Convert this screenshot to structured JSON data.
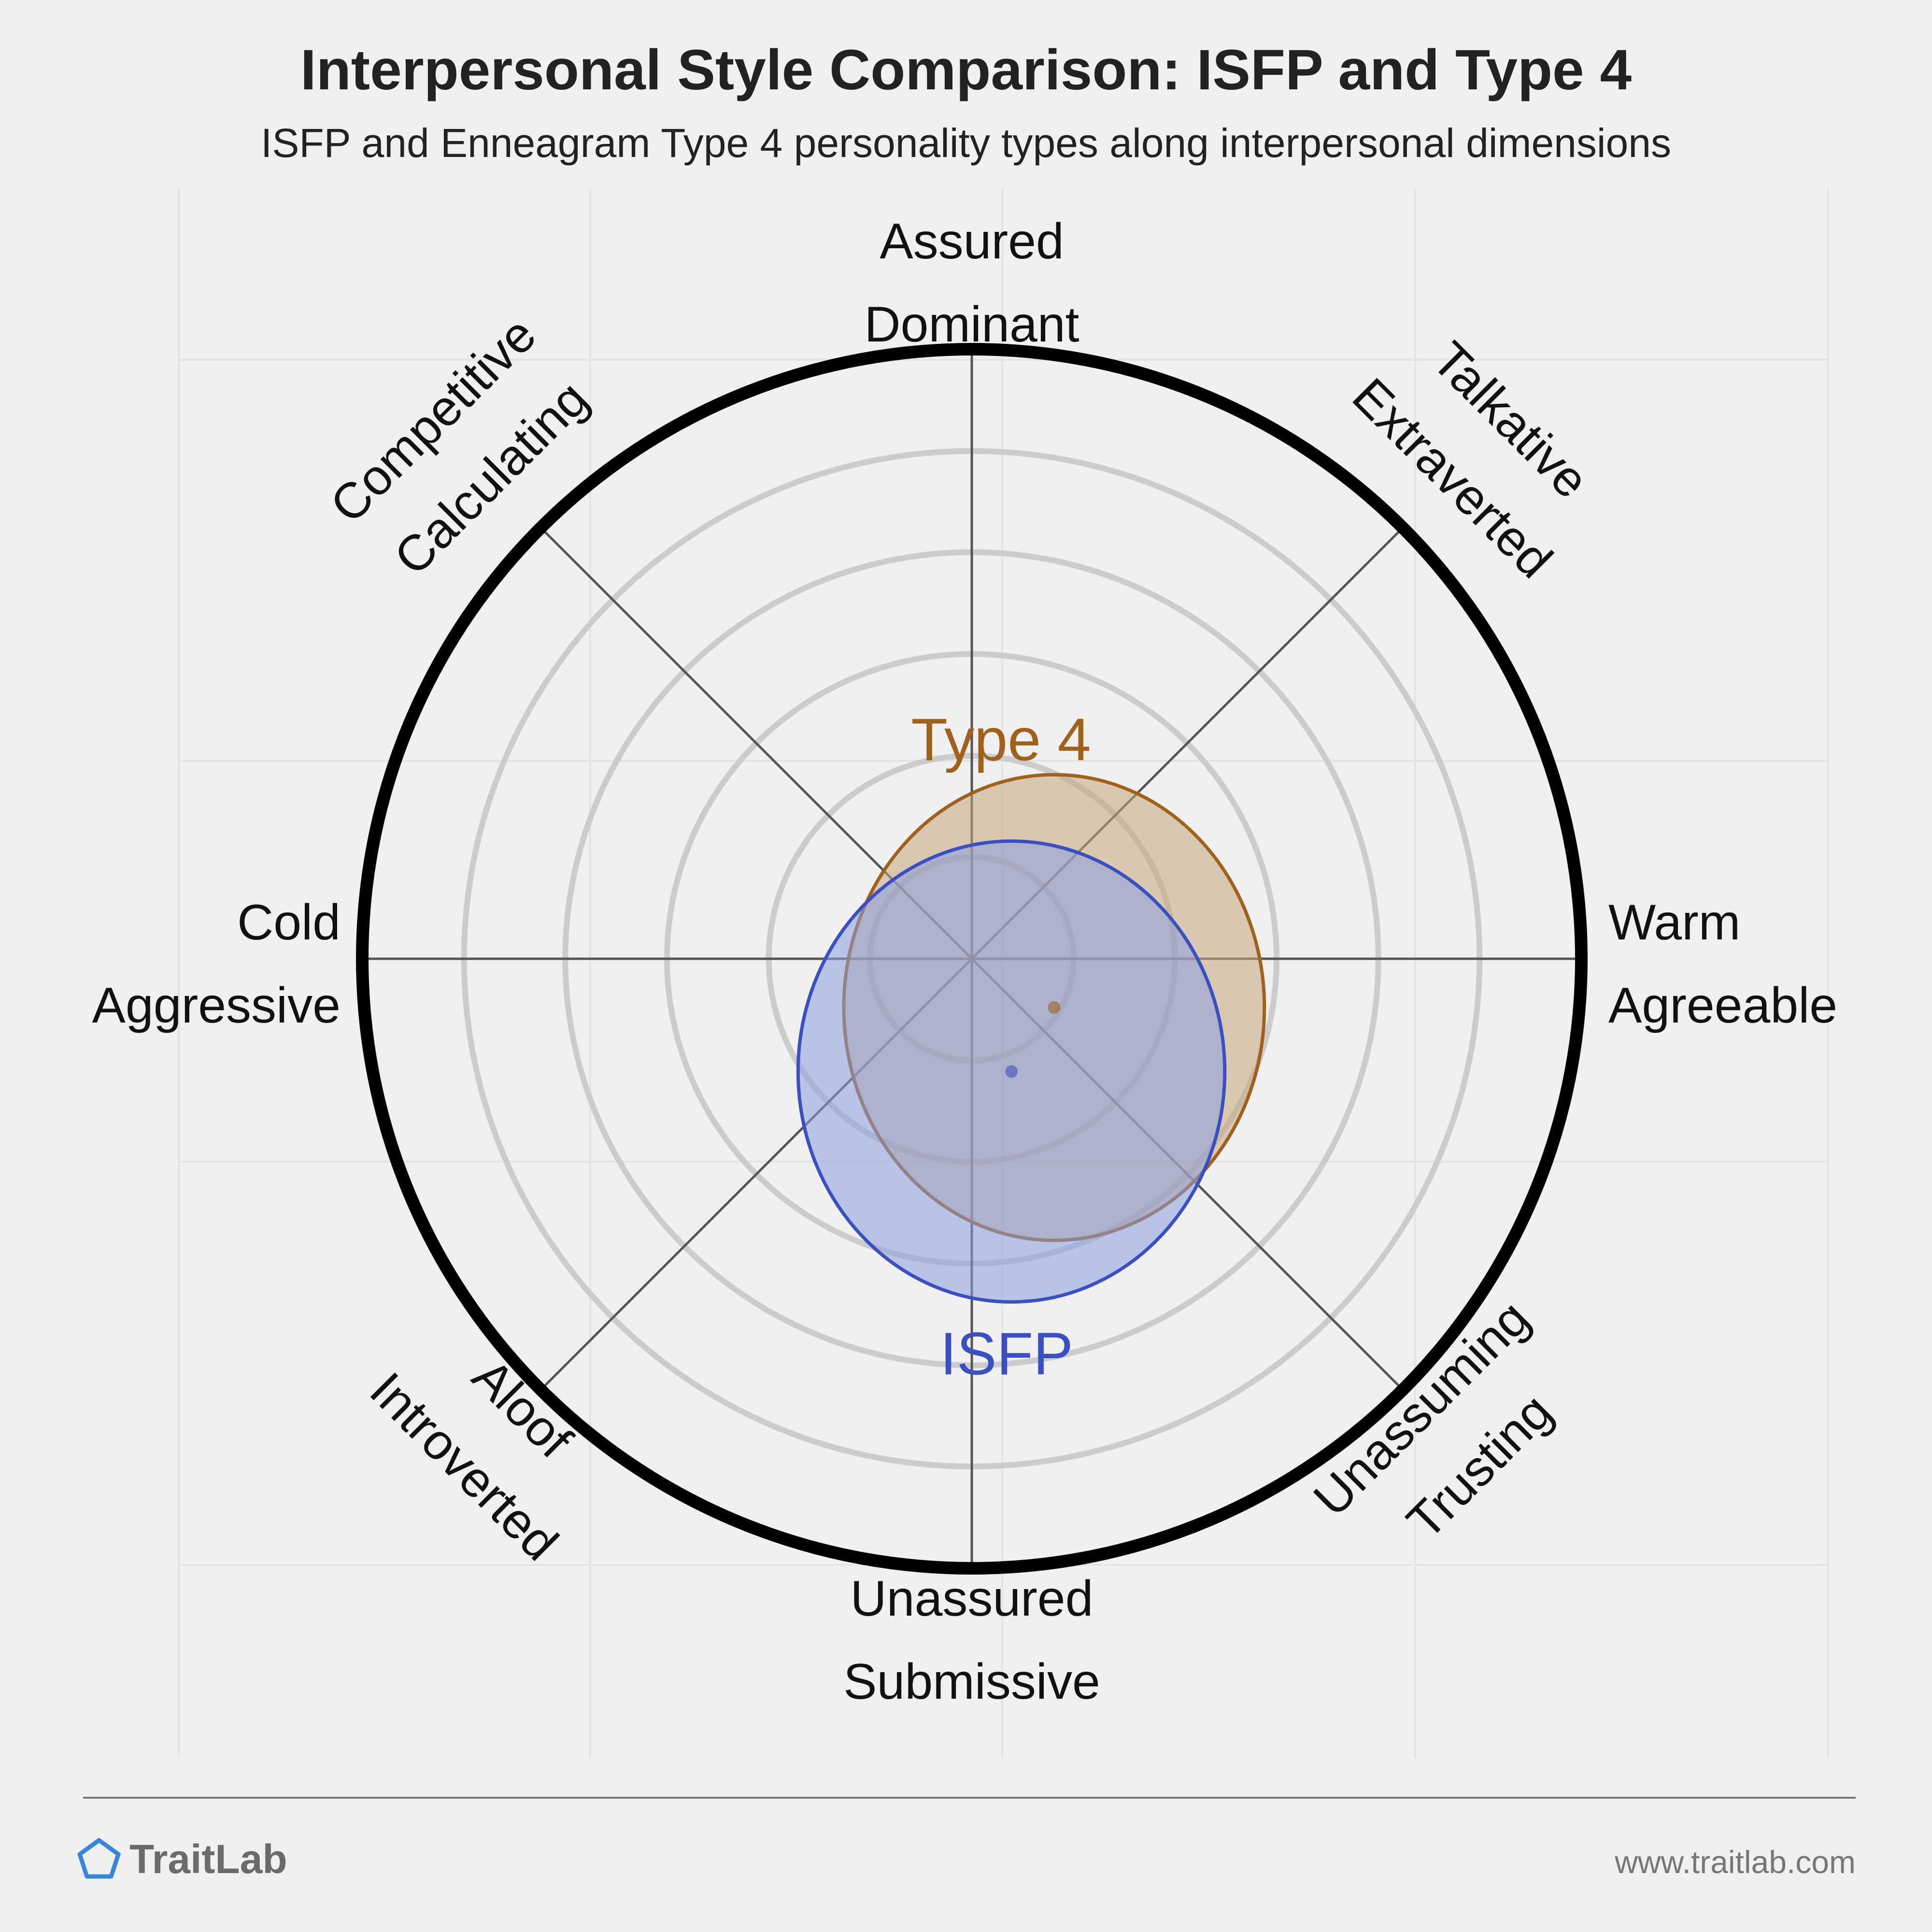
{
  "header": {
    "title": "Interpersonal Style Comparison: ISFP and Type 4",
    "subtitle": "ISFP and Enneagram Type 4 personality types along interpersonal dimensions"
  },
  "footer": {
    "brand": "TraitLab",
    "url": "www.traitlab.com",
    "brand_icon": "pentagon-icon",
    "brand_color": "#3a86d6"
  },
  "chart_data": {
    "type": "scatter",
    "chart_kind": "interpersonal-circumplex",
    "grid": true,
    "scale": {
      "max_radius": 1.0,
      "rings": [
        0.167,
        0.333,
        0.5,
        0.667,
        0.833
      ]
    },
    "axes": [
      {
        "angle_deg": 90,
        "labels": [
          "Assured",
          "Dominant"
        ]
      },
      {
        "angle_deg": 45,
        "labels": [
          "Talkative",
          "Extraverted"
        ]
      },
      {
        "angle_deg": 0,
        "labels": [
          "Warm",
          "Agreeable"
        ]
      },
      {
        "angle_deg": -45,
        "labels": [
          "Unassuming",
          "Trusting"
        ]
      },
      {
        "angle_deg": -90,
        "labels": [
          "Unassured",
          "Submissive"
        ]
      },
      {
        "angle_deg": -135,
        "labels": [
          "Aloof",
          "Introverted"
        ]
      },
      {
        "angle_deg": 180,
        "labels": [
          "Cold",
          "Aggressive"
        ]
      },
      {
        "angle_deg": 135,
        "labels": [
          "Competitive",
          "Calculating"
        ]
      }
    ],
    "series": [
      {
        "name": "Type 4",
        "x": 0.135,
        "y": -0.08,
        "spread_x": 0.345,
        "spread_y": 0.382,
        "color": "#a0611c",
        "fill": "#c8a57e"
      },
      {
        "name": "ISFP",
        "x": 0.065,
        "y": -0.185,
        "spread_x": 0.35,
        "spread_y": 0.378,
        "color": "#3a50c0",
        "fill": "#8a9ee0"
      }
    ]
  }
}
